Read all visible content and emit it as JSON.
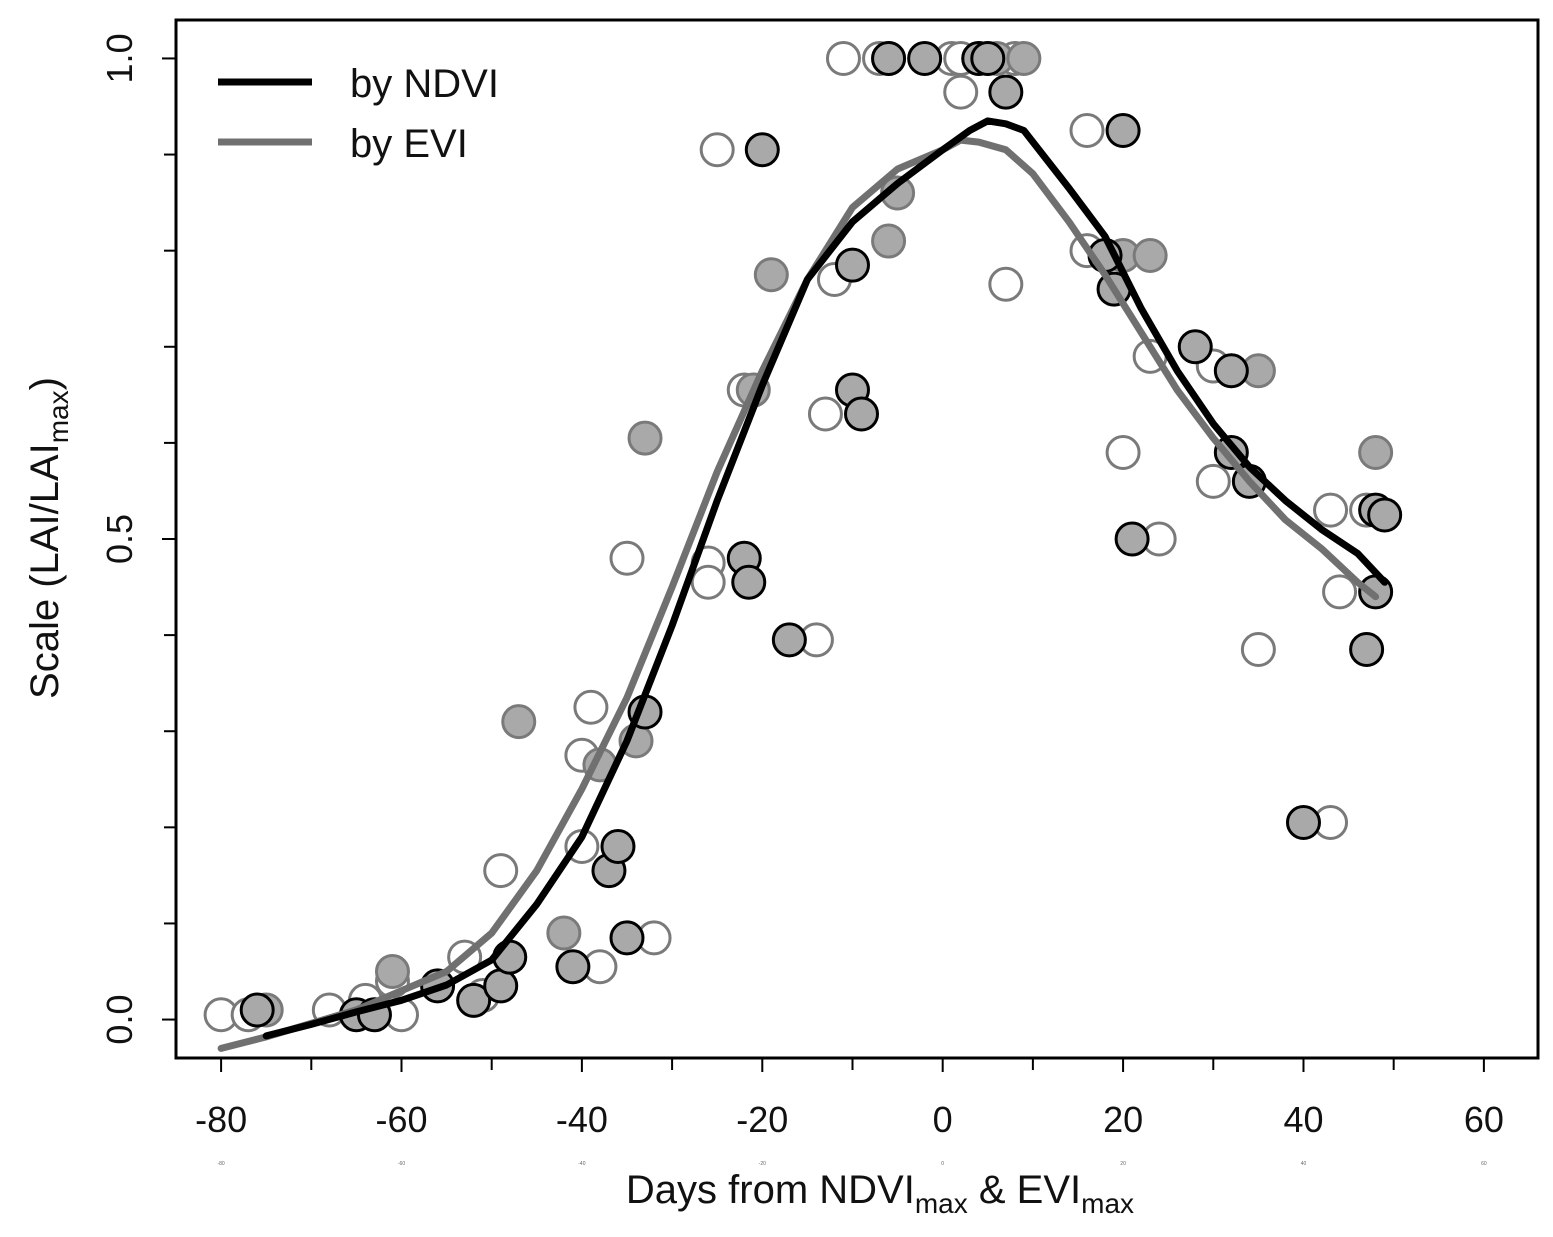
{
  "chart_data": {
    "type": "scatter",
    "title": "",
    "xlabel": {
      "main": "Days from NDVI",
      "sub1": "max",
      "amp": " & EVI",
      "sub2": "max"
    },
    "ylabel": {
      "main": "Scale (LAI/LAI",
      "sub": "max",
      "close": ")"
    },
    "xlim": [
      -85,
      66
    ],
    "ylim": [
      -0.04,
      1.04
    ],
    "x_ticks": [
      -80,
      -60,
      -40,
      -20,
      0,
      20,
      40,
      60
    ],
    "x_tick_labels": [
      "-80",
      "-60",
      "-40",
      "-20",
      "0",
      "20",
      "40",
      "60"
    ],
    "x_minor_ticks": [
      -70,
      -50,
      -30,
      -10,
      10,
      30,
      50
    ],
    "y_ticks": [
      0.0,
      0.5,
      1.0
    ],
    "y_tick_labels": [
      "0.0",
      "0.5",
      "1.0"
    ],
    "y_minor_ticks": [
      0.1,
      0.2,
      0.3,
      0.4,
      0.6,
      0.7,
      0.8,
      0.9
    ],
    "x_mini_labels": [
      "-80",
      "-60",
      "-40",
      "-20",
      "0",
      "20",
      "40",
      "60"
    ],
    "legend": {
      "position": "top-left",
      "entries": [
        {
          "label": "by NDVI",
          "color": "#000000"
        },
        {
          "label": "by EVI",
          "color": "#707070"
        }
      ]
    },
    "series": [
      {
        "name": "by NDVI",
        "kind": "line",
        "color": "#000000",
        "x": [
          -75,
          -70,
          -65,
          -60,
          -55,
          -50,
          -45,
          -40,
          -35,
          -30,
          -25,
          -20,
          -15,
          -10,
          -5,
          0,
          3,
          5,
          7,
          9,
          14,
          18,
          22,
          26,
          30,
          34,
          38,
          42,
          46,
          49
        ],
        "y": [
          -0.017,
          -0.005,
          0.008,
          0.02,
          0.036,
          0.062,
          0.12,
          0.19,
          0.29,
          0.41,
          0.54,
          0.66,
          0.77,
          0.83,
          0.87,
          0.905,
          0.925,
          0.935,
          0.932,
          0.925,
          0.865,
          0.815,
          0.74,
          0.675,
          0.62,
          0.575,
          0.54,
          0.51,
          0.485,
          0.455
        ]
      },
      {
        "name": "by EVI",
        "kind": "line",
        "color": "#707070",
        "x": [
          -80,
          -75,
          -70,
          -65,
          -60,
          -55,
          -50,
          -45,
          -40,
          -35,
          -30,
          -25,
          -20,
          -15,
          -10,
          -5,
          0,
          2,
          4,
          7,
          10,
          14,
          18,
          22,
          26,
          30,
          34,
          38,
          42,
          46,
          48
        ],
        "y": [
          -0.03,
          -0.018,
          -0.004,
          0.01,
          0.03,
          0.05,
          0.09,
          0.155,
          0.24,
          0.335,
          0.45,
          0.57,
          0.675,
          0.77,
          0.845,
          0.885,
          0.905,
          0.915,
          0.913,
          0.905,
          0.88,
          0.83,
          0.775,
          0.715,
          0.655,
          0.605,
          0.56,
          0.52,
          0.49,
          0.455,
          0.44
        ]
      },
      {
        "name": "NDVI filled points",
        "kind": "points",
        "fill": "#a9a9a9",
        "stroke": "#000000",
        "points": [
          [
            -76,
            0.01
          ],
          [
            -65,
            0.005
          ],
          [
            -63,
            0.005
          ],
          [
            -56,
            0.035
          ],
          [
            -52,
            0.02
          ],
          [
            -49,
            0.035
          ],
          [
            -48,
            0.065
          ],
          [
            -41,
            0.055
          ],
          [
            -37,
            0.155
          ],
          [
            -36,
            0.18
          ],
          [
            -35,
            0.085
          ],
          [
            -33,
            0.32
          ],
          [
            -22,
            0.48
          ],
          [
            -21.5,
            0.455
          ],
          [
            -17,
            0.395
          ],
          [
            -10,
            0.785
          ],
          [
            -10,
            0.655
          ],
          [
            -9,
            0.63
          ],
          [
            -20,
            0.905
          ],
          [
            -6,
            1.0
          ],
          [
            -2,
            1.0
          ],
          [
            4,
            1.0
          ],
          [
            5,
            1.0
          ],
          [
            7,
            0.965
          ],
          [
            18,
            0.795
          ],
          [
            19,
            0.76
          ],
          [
            20,
            0.925
          ],
          [
            21,
            0.5
          ],
          [
            28,
            0.7
          ],
          [
            32,
            0.59
          ],
          [
            32,
            0.675
          ],
          [
            34,
            0.56
          ],
          [
            40,
            0.205
          ],
          [
            47,
            0.385
          ],
          [
            48,
            0.53
          ],
          [
            49,
            0.525
          ],
          [
            48,
            0.445
          ]
        ]
      },
      {
        "name": "EVI filled points",
        "kind": "points",
        "fill": "#a9a9a9",
        "stroke": "#7a7a7a",
        "points": [
          [
            -75,
            0.01
          ],
          [
            -61,
            0.05
          ],
          [
            -47,
            0.31
          ],
          [
            -42,
            0.09
          ],
          [
            -38,
            0.265
          ],
          [
            -34,
            0.29
          ],
          [
            -33,
            0.605
          ],
          [
            -21,
            0.655
          ],
          [
            -19,
            0.775
          ],
          [
            -6,
            0.81
          ],
          [
            -5,
            0.86
          ],
          [
            -6,
            1.0
          ],
          [
            5,
            1.0
          ],
          [
            6,
            1.0
          ],
          [
            9,
            1.0
          ],
          [
            20,
            0.795
          ],
          [
            23,
            0.795
          ],
          [
            35,
            0.675
          ],
          [
            48,
            0.59
          ]
        ]
      },
      {
        "name": "open points",
        "kind": "points",
        "fill": "#ffffff",
        "stroke": "#7a7a7a",
        "points": [
          [
            -80,
            0.005
          ],
          [
            -77,
            0.005
          ],
          [
            -68,
            0.01
          ],
          [
            -64,
            0.02
          ],
          [
            -61,
            0.04
          ],
          [
            -60,
            0.005
          ],
          [
            -53,
            0.065
          ],
          [
            -51,
            0.025
          ],
          [
            -49,
            0.155
          ],
          [
            -40,
            0.275
          ],
          [
            -40,
            0.18
          ],
          [
            -39,
            0.325
          ],
          [
            -38,
            0.055
          ],
          [
            -35,
            0.48
          ],
          [
            -32,
            0.085
          ],
          [
            -26,
            0.475
          ],
          [
            -26,
            0.455
          ],
          [
            -25,
            0.905
          ],
          [
            -22,
            0.655
          ],
          [
            -14,
            0.395
          ],
          [
            -13,
            0.63
          ],
          [
            -11,
            1.0
          ],
          [
            -12,
            0.77
          ],
          [
            -7,
            1.0
          ],
          [
            1,
            1.0
          ],
          [
            2,
            1.0
          ],
          [
            2,
            0.965
          ],
          [
            4,
            1.0
          ],
          [
            8,
            1.0
          ],
          [
            7,
            0.765
          ],
          [
            16,
            0.8
          ],
          [
            16,
            0.925
          ],
          [
            20,
            0.59
          ],
          [
            24,
            0.5
          ],
          [
            23,
            0.69
          ],
          [
            30,
            0.56
          ],
          [
            30,
            0.68
          ],
          [
            35,
            0.385
          ],
          [
            43,
            0.53
          ],
          [
            43,
            0.205
          ],
          [
            44,
            0.445
          ],
          [
            47,
            0.53
          ]
        ]
      }
    ]
  }
}
